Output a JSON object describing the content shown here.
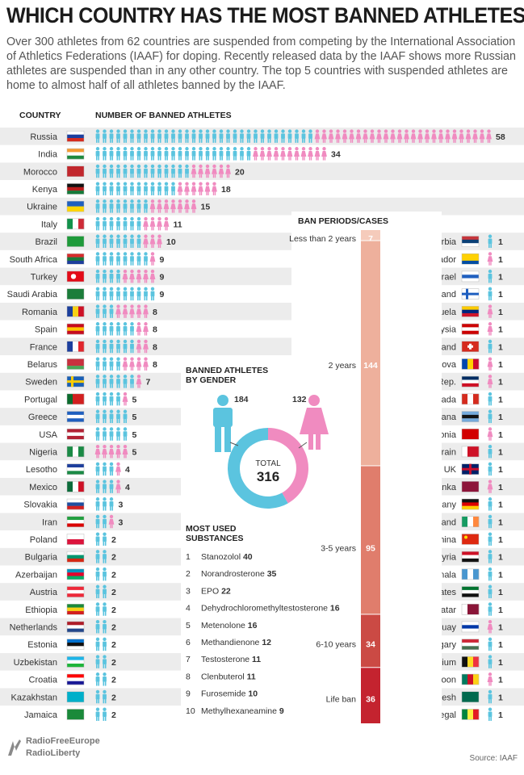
{
  "title": "WHICH COUNTRY HAS THE MOST BANNED ATHLETES?",
  "intro": "Over 300 athletes from 62 countries are suspended from competing by the International Association of Athletics Federations (IAAF) for doping. Recently released data by the IAAF shows more Russian athletes are suspended than in any other country. The top 5 countries with suspended athletes are home to almost half of all athletes banned by the IAAF.",
  "headers": {
    "country": "COUNTRY",
    "number": "NUMBER OF BANNED ATHLETES",
    "ban_periods": "BAN PERIODS/CASES"
  },
  "colors": {
    "male": "#5bc4df",
    "female": "#f08bc0",
    "row_alt": "#ececec",
    "ban_light": "#f5cbbb",
    "ban_mid1": "#eeb09c",
    "ban_mid2": "#e07d6c",
    "ban_dark1": "#cb4a44",
    "ban_dark2": "#c4232f"
  },
  "chart_data": [
    {
      "type": "bar",
      "title": "NUMBER OF BANNED ATHLETES",
      "categories": [
        "Russia",
        "India",
        "Morocco",
        "Kenya",
        "Ukraine",
        "Italy",
        "Brazil",
        "South Africa",
        "Turkey",
        "Saudi Arabia",
        "Romania",
        "Spain",
        "France",
        "Belarus",
        "Sweden",
        "Portugal",
        "Greece",
        "USA",
        "Nigeria",
        "Lesotho",
        "Mexico",
        "Slovakia",
        "Iran",
        "Poland",
        "Bulgaria",
        "Azerbaijan",
        "Austria",
        "Ethiopia",
        "Netherlands",
        "Estonia",
        "Uzbekistan",
        "Croatia",
        "Kazakhstan",
        "Jamaica"
      ],
      "values": [
        58,
        34,
        20,
        18,
        15,
        11,
        10,
        9,
        9,
        9,
        8,
        8,
        8,
        8,
        7,
        5,
        5,
        5,
        5,
        4,
        4,
        3,
        3,
        2,
        2,
        2,
        2,
        2,
        2,
        2,
        2,
        2,
        2,
        2
      ],
      "flags": [
        "flag-russia-icon",
        "flag-india-icon",
        "flag-morocco-icon",
        "flag-kenya-icon",
        "flag-ukraine-icon",
        "flag-italy-icon",
        "flag-brazil-icon",
        "flag-south-africa-icon",
        "flag-turkey-icon",
        "flag-saudi-arabia-icon",
        "flag-romania-icon",
        "flag-spain-icon",
        "flag-france-icon",
        "flag-belarus-icon",
        "flag-sweden-icon",
        "flag-portugal-icon",
        "flag-greece-icon",
        "flag-usa-icon",
        "flag-nigeria-icon",
        "flag-lesotho-icon",
        "flag-mexico-icon",
        "flag-slovakia-icon",
        "flag-iran-icon",
        "flag-poland-icon",
        "flag-bulgaria-icon",
        "flag-azerbaijan-icon",
        "flag-austria-icon",
        "flag-ethiopia-icon",
        "flag-netherlands-icon",
        "flag-estonia-icon",
        "flag-uzbekistan-icon",
        "flag-croatia-icon",
        "flag-kazakhstan-icon",
        "flag-jamaica-icon"
      ],
      "note": "each figure = one athlete; blue = male, pink = female"
    },
    {
      "type": "bar",
      "categories": [
        "Serbia",
        "Ecuador",
        "Israel",
        "Finland",
        "Venezuela",
        "Malaysia",
        "Switzerland",
        "Moldova",
        "Dominican Rep.",
        "Canada",
        "Botswana",
        "Macedonia",
        "Bahrain",
        "UK",
        "Sri Lanka",
        "Germany",
        "Ireland",
        "China",
        "Syria",
        "Guatemala",
        "U. A. Emirates",
        "Qatar",
        "Uruguay",
        "Hungary",
        "Belgium",
        "Cameroon",
        "Bangladesh",
        "Senegal"
      ],
      "values": [
        1,
        1,
        1,
        1,
        1,
        1,
        1,
        1,
        1,
        1,
        1,
        1,
        1,
        1,
        1,
        1,
        1,
        1,
        1,
        1,
        1,
        1,
        1,
        1,
        1,
        1,
        1,
        1
      ],
      "flags": [
        "flag-serbia-icon",
        "flag-ecuador-icon",
        "flag-israel-icon",
        "flag-finland-icon",
        "flag-venezuela-icon",
        "flag-malaysia-icon",
        "flag-switzerland-icon",
        "flag-moldova-icon",
        "flag-dominican-rep-icon",
        "flag-canada-icon",
        "flag-botswana-icon",
        "flag-macedonia-icon",
        "flag-bahrain-icon",
        "flag-uk-icon",
        "flag-sri-lanka-icon",
        "flag-germany-icon",
        "flag-ireland-icon",
        "flag-china-icon",
        "flag-syria-icon",
        "flag-guatemala-icon",
        "flag-uae-icon",
        "flag-qatar-icon",
        "flag-uruguay-icon",
        "flag-hungary-icon",
        "flag-belgium-icon",
        "flag-cameroon-icon",
        "flag-bangladesh-icon",
        "flag-senegal-icon"
      ]
    },
    {
      "type": "pie",
      "title": "BANNED ATHLETES BY GENDER",
      "categories": [
        "Male",
        "Female"
      ],
      "values": [
        184,
        132
      ],
      "total_label": "TOTAL",
      "total": 316
    },
    {
      "type": "bar",
      "title": "BAN PERIODS/CASES",
      "categories": [
        "Less than 2 years",
        "2 years",
        "3-5 years",
        "6-10 years",
        "Life ban"
      ],
      "values": [
        7,
        144,
        95,
        34,
        36
      ]
    },
    {
      "type": "table",
      "title": "MOST USED SUBSTANCES",
      "rows": [
        {
          "rank": "1",
          "name": "Stanozolol",
          "count": "40"
        },
        {
          "rank": "2",
          "name": "Norandrosterone",
          "count": "35"
        },
        {
          "rank": "3",
          "name": "EPO",
          "count": "22"
        },
        {
          "rank": "4",
          "name": "Dehydrochloromethyltestosterone",
          "count": "16"
        },
        {
          "rank": "5",
          "name": "Metenolone",
          "count": "16"
        },
        {
          "rank": "6",
          "name": "Methandienone",
          "count": "12"
        },
        {
          "rank": "7",
          "name": "Testosterone",
          "count": "11"
        },
        {
          "rank": "8",
          "name": "Clenbuterol",
          "count": "11"
        },
        {
          "rank": "9",
          "name": "Furosemide",
          "count": "10"
        },
        {
          "rank": "10",
          "name": "Methylhexaneamine",
          "count": "9"
        }
      ]
    }
  ],
  "gender_counts": {
    "male": "184",
    "female": "132",
    "total_label": "TOTAL",
    "total": "316"
  },
  "footer": {
    "logo_line1": "RadioFreeEurope",
    "logo_line2": "RadioLiberty",
    "source": "Source: IAAF"
  }
}
